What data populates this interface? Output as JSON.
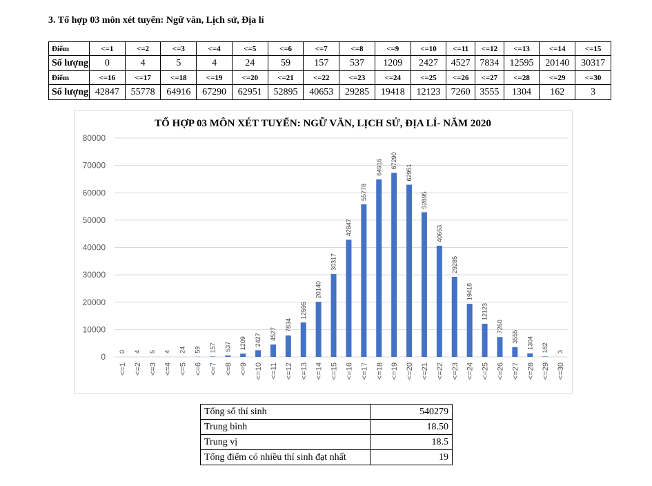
{
  "heading": "3. Tổ hợp 03 môn xét tuyển: Ngữ văn, Lịch sử, Địa lí",
  "table": {
    "row_label_score": "Điểm",
    "row_label_count": "Số lượng"
  },
  "chart_data": {
    "type": "bar",
    "title": "TỔ HỢP 03 MÔN XÉT TUYỂN: NGỮ VĂN, LỊCH SỬ, ĐỊA LÍ- NĂM 2020",
    "categories": [
      "<=1",
      "<=2",
      "<=3",
      "<=4",
      "<=5",
      "<=6",
      "<=7",
      "<=8",
      "<=9",
      "<=10",
      "<=11",
      "<=12",
      "<=13",
      "<=14",
      "<=15",
      "<=16",
      "<=17",
      "<=18",
      "<=19",
      "<=20",
      "<=21",
      "<=22",
      "<=23",
      "<=24",
      "<=25",
      "<=26",
      "<=27",
      "<=28",
      "<=29",
      "<=30"
    ],
    "values": [
      0,
      4,
      5,
      4,
      24,
      59,
      157,
      537,
      1209,
      2427,
      4527,
      7834,
      12595,
      20140,
      30317,
      42847,
      55778,
      64916,
      67290,
      62951,
      52895,
      40653,
      29285,
      19418,
      12123,
      7260,
      3555,
      1304,
      162,
      3
    ],
    "yticks": [
      0,
      10000,
      20000,
      30000,
      40000,
      50000,
      60000,
      70000,
      80000
    ],
    "ylim": [
      0,
      80000
    ],
    "xlabel": "",
    "ylabel": "",
    "grid": true,
    "bar_color": "#4472c4"
  },
  "summary": [
    {
      "label": "Tổng số thí sinh",
      "value": "540279"
    },
    {
      "label": "Trung bình",
      "value": "18.50"
    },
    {
      "label": "Trung vị",
      "value": "18.5"
    },
    {
      "label": "Tổng điểm có nhiều thí sinh đạt nhất",
      "value": "19"
    }
  ]
}
